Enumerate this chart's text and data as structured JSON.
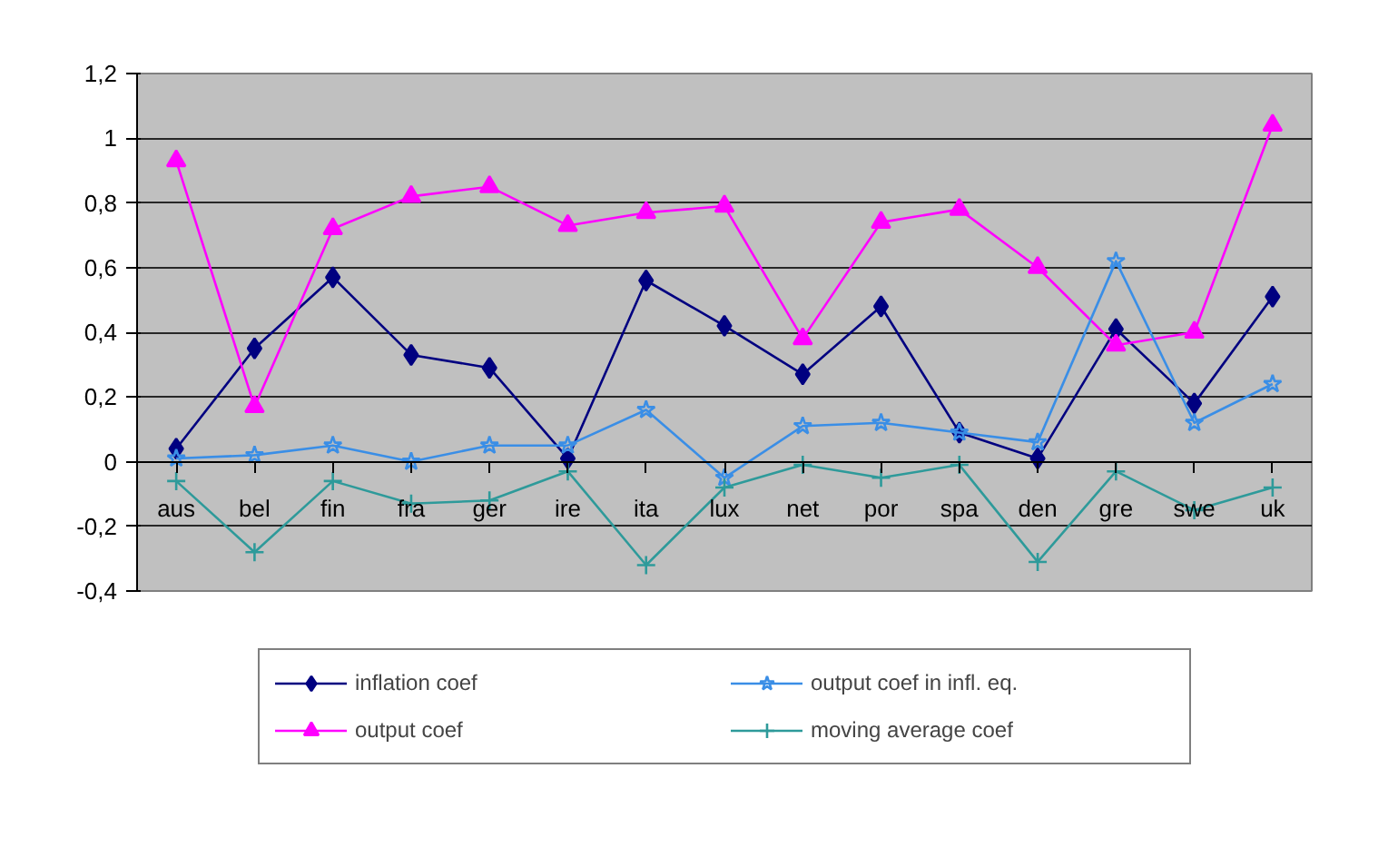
{
  "chart_data": {
    "type": "line",
    "categories": [
      "aus",
      "bel",
      "fin",
      "fra",
      "ger",
      "ire",
      "ita",
      "lux",
      "net",
      "por",
      "spa",
      "den",
      "gre",
      "swe",
      "uk"
    ],
    "series": [
      {
        "name": "inflation coef",
        "color": "#000080",
        "marker": "diamond",
        "values": [
          0.04,
          0.35,
          0.57,
          0.33,
          0.29,
          0.01,
          0.56,
          0.42,
          0.27,
          0.48,
          0.09,
          0.01,
          0.41,
          0.18,
          0.51
        ]
      },
      {
        "name": "output coef",
        "color": "#ff00ff",
        "marker": "triangle",
        "values": [
          0.93,
          0.17,
          0.72,
          0.82,
          0.85,
          0.73,
          0.77,
          0.79,
          0.38,
          0.74,
          0.78,
          0.6,
          0.36,
          0.4,
          1.04
        ]
      },
      {
        "name": "output coef in infl. eq.",
        "color": "#3a8ee6",
        "marker": "star",
        "values": [
          0.01,
          0.02,
          0.05,
          0.0,
          0.05,
          0.05,
          0.16,
          -0.05,
          0.11,
          0.12,
          0.09,
          0.06,
          0.62,
          0.12,
          0.24
        ]
      },
      {
        "name": "moving average coef",
        "color": "#2e9a9a",
        "marker": "cross",
        "values": [
          -0.06,
          -0.28,
          -0.06,
          -0.13,
          -0.12,
          -0.03,
          -0.32,
          -0.08,
          -0.01,
          -0.05,
          -0.01,
          -0.31,
          -0.03,
          -0.15,
          -0.08
        ]
      }
    ],
    "ylim": [
      -0.4,
      1.2
    ],
    "yticks": [
      {
        "value": -0.4,
        "label": "-0,4"
      },
      {
        "value": -0.2,
        "label": "-0,2"
      },
      0,
      {
        "value": 0.2,
        "label": "0,2"
      },
      {
        "value": 0.4,
        "label": "0,4"
      },
      {
        "value": 0.6,
        "label": "0,6"
      },
      {
        "value": 0.8,
        "label": "0,8"
      },
      1,
      {
        "value": 1.2,
        "label": "1,2"
      }
    ],
    "grid": "y",
    "legend": "bottom",
    "line_style": "solid"
  }
}
